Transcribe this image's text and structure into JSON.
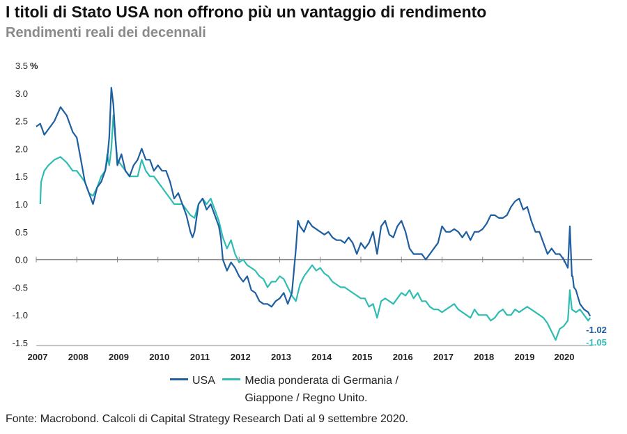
{
  "title": "I titoli di Stato USA non offrono più un vantaggio di rendimento",
  "subtitle": "Rendimenti reali dei decennali",
  "source": "Fonte: Macrobond. Calcoli di Capital Strategy Research Dati al 9 settembre 2020.",
  "colors": {
    "usa": "#1f5fa0",
    "europe": "#2fbdb3",
    "axis": "#888888"
  },
  "chart_data": {
    "type": "line",
    "unit": "%",
    "x_ticks": [
      "2007",
      "2008",
      "2009",
      "2010",
      "2011",
      "2012",
      "2013",
      "2014",
      "2015",
      "2016",
      "2017",
      "2018",
      "2019",
      "2020"
    ],
    "y_ticks": [
      "3.5",
      "3.0",
      "2.5",
      "2.0",
      "1.5",
      "1.0",
      "0.5",
      "0.0",
      "-0.5",
      "-1.0",
      "-1.5"
    ],
    "xlim": [
      2007,
      2020.7
    ],
    "ylim": [
      -1.5,
      3.5
    ],
    "legend_position": "bottom",
    "series": [
      {
        "name": "USA",
        "color": "#1f5fa0",
        "end_label": "-1.02",
        "x": [
          2007.0,
          2007.1,
          2007.2,
          2007.3,
          2007.45,
          2007.6,
          2007.75,
          2007.9,
          2008.0,
          2008.1,
          2008.2,
          2008.3,
          2008.4,
          2008.5,
          2008.6,
          2008.7,
          2008.75,
          2008.8,
          2008.85,
          2008.9,
          2008.95,
          2009.0,
          2009.1,
          2009.2,
          2009.3,
          2009.4,
          2009.5,
          2009.6,
          2009.7,
          2009.8,
          2009.9,
          2010.0,
          2010.1,
          2010.2,
          2010.3,
          2010.4,
          2010.5,
          2010.6,
          2010.7,
          2010.8,
          2010.85,
          2010.9,
          2011.0,
          2011.1,
          2011.2,
          2011.3,
          2011.4,
          2011.5,
          2011.55,
          2011.6,
          2011.7,
          2011.8,
          2011.9,
          2012.0,
          2012.1,
          2012.2,
          2012.3,
          2012.4,
          2012.5,
          2012.6,
          2012.7,
          2012.8,
          2012.9,
          2013.0,
          2013.1,
          2013.2,
          2013.3,
          2013.4,
          2013.45,
          2013.5,
          2013.6,
          2013.7,
          2013.8,
          2013.9,
          2014.0,
          2014.1,
          2014.2,
          2014.3,
          2014.4,
          2014.5,
          2014.6,
          2014.7,
          2014.8,
          2014.9,
          2015.0,
          2015.1,
          2015.2,
          2015.3,
          2015.4,
          2015.5,
          2015.6,
          2015.7,
          2015.8,
          2015.9,
          2016.0,
          2016.1,
          2016.2,
          2016.3,
          2016.4,
          2016.5,
          2016.6,
          2016.7,
          2016.8,
          2016.9,
          2017.0,
          2017.1,
          2017.2,
          2017.3,
          2017.4,
          2017.5,
          2017.6,
          2017.7,
          2017.8,
          2017.9,
          2018.0,
          2018.1,
          2018.2,
          2018.3,
          2018.4,
          2018.5,
          2018.6,
          2018.7,
          2018.8,
          2018.9,
          2019.0,
          2019.1,
          2019.2,
          2019.3,
          2019.4,
          2019.5,
          2019.6,
          2019.7,
          2019.8,
          2019.9,
          2020.0,
          2020.1,
          2020.15,
          2020.2,
          2020.22,
          2020.25,
          2020.3,
          2020.4,
          2020.5,
          2020.6,
          2020.65
        ],
        "y": [
          2.4,
          2.45,
          2.25,
          2.35,
          2.5,
          2.75,
          2.6,
          2.3,
          2.2,
          1.8,
          1.4,
          1.2,
          1.0,
          1.3,
          1.4,
          1.6,
          1.8,
          2.2,
          3.1,
          2.8,
          2.2,
          1.7,
          1.9,
          1.6,
          1.5,
          1.7,
          1.8,
          2.0,
          1.8,
          1.8,
          1.6,
          1.7,
          1.6,
          1.6,
          1.4,
          1.1,
          1.2,
          1.0,
          0.8,
          0.5,
          0.4,
          0.5,
          1.0,
          1.1,
          0.9,
          1.0,
          0.8,
          0.6,
          0.4,
          0.0,
          -0.2,
          -0.05,
          -0.15,
          -0.3,
          -0.4,
          -0.3,
          -0.55,
          -0.6,
          -0.75,
          -0.8,
          -0.8,
          -0.85,
          -0.75,
          -0.7,
          -0.6,
          -0.8,
          -0.6,
          0.2,
          0.7,
          0.6,
          0.5,
          0.7,
          0.6,
          0.55,
          0.5,
          0.45,
          0.5,
          0.4,
          0.35,
          0.35,
          0.3,
          0.4,
          0.3,
          0.1,
          0.3,
          0.2,
          0.3,
          0.5,
          0.1,
          0.6,
          0.7,
          0.45,
          0.4,
          0.6,
          0.7,
          0.5,
          0.2,
          0.1,
          0.1,
          0.1,
          0.0,
          0.1,
          0.2,
          0.3,
          0.6,
          0.5,
          0.5,
          0.55,
          0.5,
          0.4,
          0.5,
          0.35,
          0.5,
          0.5,
          0.55,
          0.65,
          0.8,
          0.8,
          0.75,
          0.75,
          0.8,
          0.95,
          1.05,
          1.1,
          0.9,
          0.95,
          0.7,
          0.5,
          0.5,
          0.3,
          0.1,
          0.2,
          0.1,
          0.1,
          0.0,
          -0.15,
          0.6,
          -0.3,
          -0.3,
          -0.5,
          -0.55,
          -0.8,
          -0.9,
          -0.95,
          -1.02
        ]
      },
      {
        "name": "Media ponderata di Germania / Giappone / Regno Unito.",
        "color": "#2fbdb3",
        "end_label": "-1.05",
        "x": [
          2007.1,
          2007.12,
          2007.2,
          2007.3,
          2007.45,
          2007.6,
          2007.75,
          2007.9,
          2008.0,
          2008.1,
          2008.2,
          2008.3,
          2008.4,
          2008.5,
          2008.6,
          2008.7,
          2008.75,
          2008.8,
          2008.85,
          2008.9,
          2009.0,
          2009.1,
          2009.2,
          2009.3,
          2009.4,
          2009.5,
          2009.6,
          2009.7,
          2009.8,
          2009.9,
          2010.0,
          2010.1,
          2010.2,
          2010.3,
          2010.4,
          2010.5,
          2010.6,
          2010.7,
          2010.8,
          2010.9,
          2011.0,
          2011.1,
          2011.2,
          2011.3,
          2011.4,
          2011.5,
          2011.6,
          2011.7,
          2011.8,
          2011.9,
          2012.0,
          2012.1,
          2012.2,
          2012.3,
          2012.4,
          2012.5,
          2012.6,
          2012.7,
          2012.8,
          2012.9,
          2013.0,
          2013.1,
          2013.2,
          2013.3,
          2013.4,
          2013.5,
          2013.6,
          2013.7,
          2013.8,
          2013.9,
          2014.0,
          2014.1,
          2014.2,
          2014.3,
          2014.4,
          2014.5,
          2014.6,
          2014.7,
          2014.8,
          2014.9,
          2015.0,
          2015.1,
          2015.2,
          2015.3,
          2015.4,
          2015.5,
          2015.6,
          2015.7,
          2015.8,
          2015.9,
          2016.0,
          2016.1,
          2016.2,
          2016.3,
          2016.4,
          2016.5,
          2016.6,
          2016.7,
          2016.8,
          2016.9,
          2017.0,
          2017.1,
          2017.2,
          2017.3,
          2017.4,
          2017.5,
          2017.6,
          2017.7,
          2017.8,
          2017.9,
          2018.0,
          2018.1,
          2018.2,
          2018.3,
          2018.4,
          2018.5,
          2018.6,
          2018.7,
          2018.8,
          2018.9,
          2019.0,
          2019.1,
          2019.2,
          2019.3,
          2019.4,
          2019.5,
          2019.6,
          2019.7,
          2019.8,
          2019.9,
          2020.0,
          2020.1,
          2020.15,
          2020.2,
          2020.3,
          2020.4,
          2020.5,
          2020.6,
          2020.65
        ],
        "y": [
          1.0,
          1.4,
          1.6,
          1.7,
          1.8,
          1.85,
          1.75,
          1.6,
          1.6,
          1.5,
          1.4,
          1.2,
          1.15,
          1.3,
          1.5,
          1.6,
          1.9,
          1.7,
          2.0,
          2.6,
          1.8,
          1.7,
          1.6,
          1.5,
          1.5,
          1.5,
          1.8,
          1.6,
          1.5,
          1.5,
          1.4,
          1.3,
          1.2,
          1.1,
          1.0,
          1.0,
          1.0,
          0.9,
          0.8,
          0.75,
          1.0,
          1.1,
          1.0,
          1.1,
          0.9,
          0.7,
          0.4,
          0.2,
          0.35,
          0.1,
          -0.05,
          0.0,
          -0.1,
          -0.15,
          -0.2,
          -0.3,
          -0.35,
          -0.5,
          -0.4,
          -0.4,
          -0.3,
          -0.35,
          -0.5,
          -0.65,
          -0.75,
          -0.45,
          -0.3,
          -0.2,
          -0.1,
          -0.2,
          -0.15,
          -0.25,
          -0.3,
          -0.4,
          -0.45,
          -0.5,
          -0.5,
          -0.55,
          -0.6,
          -0.65,
          -0.7,
          -0.7,
          -0.85,
          -0.8,
          -1.05,
          -0.75,
          -0.7,
          -0.75,
          -0.8,
          -0.7,
          -0.6,
          -0.65,
          -0.55,
          -0.7,
          -0.6,
          -0.75,
          -0.75,
          -0.85,
          -0.9,
          -0.9,
          -0.95,
          -0.9,
          -0.85,
          -0.8,
          -0.9,
          -0.95,
          -1.0,
          -1.05,
          -0.9,
          -1.0,
          -1.0,
          -1.0,
          -1.1,
          -1.05,
          -0.95,
          -0.9,
          -1.0,
          -1.0,
          -0.9,
          -0.95,
          -0.9,
          -0.85,
          -0.9,
          -0.95,
          -1.0,
          -1.05,
          -1.15,
          -1.3,
          -1.45,
          -1.25,
          -1.2,
          -1.1,
          -0.55,
          -0.9,
          -0.95,
          -0.9,
          -1.0,
          -1.1,
          -1.05
        ]
      }
    ]
  }
}
